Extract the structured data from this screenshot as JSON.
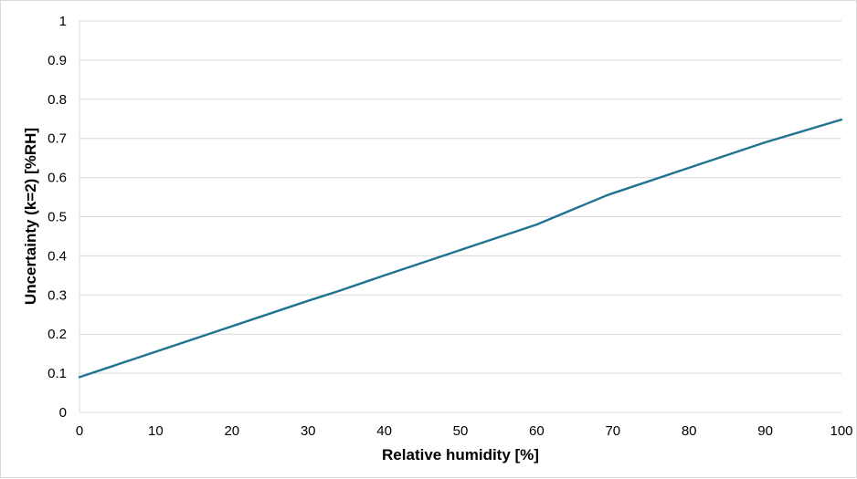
{
  "chart_data": {
    "type": "line",
    "title": "",
    "xlabel": "Relative humidity [%]",
    "ylabel": "Uncertainty (k=2) [%RH]",
    "xlim": [
      0,
      100
    ],
    "ylim": [
      0,
      1
    ],
    "x_ticks": [
      "0",
      "10",
      "20",
      "30",
      "40",
      "50",
      "60",
      "70",
      "80",
      "90",
      "100"
    ],
    "y_ticks": [
      "0",
      "0.1",
      "0.2",
      "0.3",
      "0.4",
      "0.5",
      "0.6",
      "0.7",
      "0.8",
      "0.9",
      "1"
    ],
    "grid": "horizontal",
    "legend": "none",
    "series": [
      {
        "color": "#1f7391",
        "x": [
          0,
          10,
          20,
          30,
          34,
          40,
          50,
          60,
          69,
          70,
          80,
          90,
          100
        ],
        "y": [
          0.09,
          0.155,
          0.22,
          0.285,
          0.31,
          0.35,
          0.415,
          0.48,
          0.553,
          0.56,
          0.625,
          0.69,
          0.748
        ]
      }
    ]
  }
}
